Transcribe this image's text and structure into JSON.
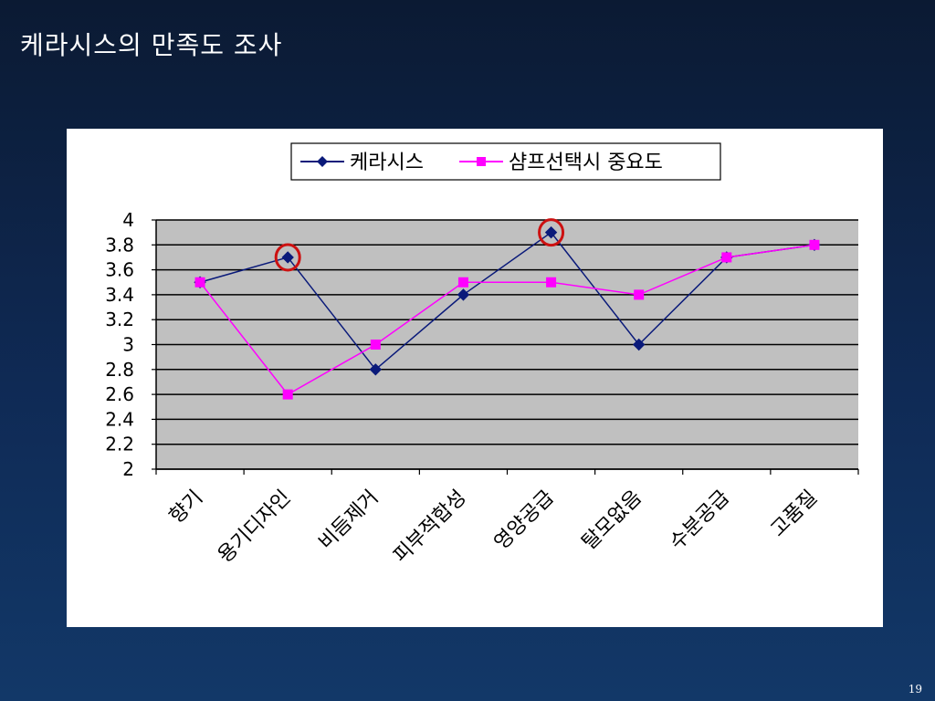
{
  "slide": {
    "title": "케라시스의 만족도 조사",
    "page_number": "19"
  },
  "colors": {
    "series_1": "#0a1a7a",
    "series_2": "#ff00ff",
    "plot_bg": "#c0c0c0",
    "highlight_circle": "#cc1111"
  },
  "chart_data": {
    "type": "line",
    "categories": [
      "향기",
      "용기디자인",
      "비듬제거",
      "피부적합성",
      "영양공급",
      "탈모없음",
      "수분공급",
      "고품질"
    ],
    "series": [
      {
        "name": "케라시스",
        "values": [
          3.5,
          3.7,
          2.8,
          3.4,
          3.9,
          3.0,
          3.7,
          3.8
        ],
        "marker": "diamond"
      },
      {
        "name": "샴프선택시 중요도",
        "values": [
          3.5,
          2.6,
          3.0,
          3.5,
          3.5,
          3.4,
          3.7,
          3.8
        ],
        "marker": "square"
      }
    ],
    "ylim": [
      2,
      4
    ],
    "yticks": [
      "2",
      "2.2",
      "2.4",
      "2.6",
      "2.8",
      "3",
      "3.2",
      "3.4",
      "3.6",
      "3.8",
      "4"
    ],
    "grid": true,
    "legend": "top-center",
    "highlighted_points": [
      {
        "series": "케라시스",
        "category": "용기디자인"
      },
      {
        "series": "케라시스",
        "category": "영양공급"
      }
    ]
  }
}
